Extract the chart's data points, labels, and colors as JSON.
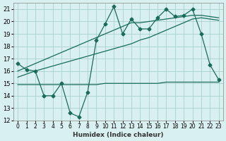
{
  "x": [
    0,
    1,
    2,
    3,
    4,
    5,
    6,
    7,
    8,
    9,
    10,
    11,
    12,
    13,
    14,
    15,
    16,
    17,
    18,
    19,
    20,
    21,
    22,
    23
  ],
  "y_zigzag": [
    16.6,
    16.1,
    16.0,
    14.0,
    14.0,
    15.0,
    12.6,
    12.3,
    14.3,
    18.5,
    19.8,
    21.2,
    19.0,
    20.2,
    19.4,
    19.4,
    20.3,
    21.0,
    20.4,
    20.5,
    21.0,
    19.0,
    16.5,
    15.3
  ],
  "y_trend1": [
    16.0,
    16.3,
    16.6,
    16.9,
    17.2,
    17.5,
    17.8,
    18.1,
    18.4,
    18.7,
    19.0,
    19.3,
    19.6,
    19.9,
    19.9,
    20.0,
    20.1,
    20.2,
    20.3,
    20.4,
    20.5,
    20.5,
    20.4,
    20.3
  ],
  "y_trend2": [
    15.5,
    15.75,
    16.0,
    16.2,
    16.4,
    16.6,
    16.8,
    17.0,
    17.2,
    17.4,
    17.6,
    17.8,
    18.0,
    18.2,
    18.5,
    18.7,
    19.0,
    19.3,
    19.6,
    19.9,
    20.2,
    20.3,
    20.2,
    20.1
  ],
  "y_flat": [
    14.9,
    14.9,
    14.9,
    14.9,
    14.9,
    14.9,
    14.9,
    14.9,
    14.9,
    14.9,
    15.0,
    15.0,
    15.0,
    15.0,
    15.0,
    15.0,
    15.0,
    15.1,
    15.1,
    15.1,
    15.1,
    15.1,
    15.1,
    15.1
  ],
  "line_color": "#1a6b5a",
  "bg_color": "#d9f0f0",
  "grid_color": "#a0c8c8",
  "xlabel": "Humidex (Indice chaleur)",
  "ylim": [
    12,
    21.5
  ],
  "xlim": [
    -0.5,
    23.5
  ],
  "yticks": [
    12,
    13,
    14,
    15,
    16,
    17,
    18,
    19,
    20,
    21
  ],
  "xticks": [
    0,
    1,
    2,
    3,
    4,
    5,
    6,
    7,
    8,
    9,
    10,
    11,
    12,
    13,
    14,
    15,
    16,
    17,
    18,
    19,
    20,
    21,
    22,
    23
  ],
  "xtick_labels": [
    "0",
    "1",
    "2",
    "3",
    "4",
    "5",
    "6",
    "7",
    "8",
    "9",
    "10",
    "11",
    "12",
    "13",
    "14",
    "15",
    "16",
    "17",
    "18",
    "19",
    "20",
    "21",
    "22",
    "23"
  ]
}
